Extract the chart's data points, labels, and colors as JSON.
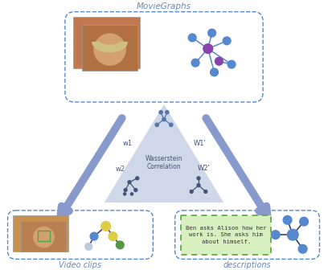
{
  "title": "MovieGraphs",
  "subtitle_left": "Video clips",
  "subtitle_right": "descriptions",
  "bg_color": "#ffffff",
  "triangle_color": "#a8b8d8",
  "arrow_color": "#8899cc",
  "node_blue": "#5588cc",
  "node_purple": "#8844aa",
  "node_yellow": "#ddcc44",
  "node_green": "#559944",
  "node_light": "#bbccdd",
  "text_color": "#6688bb",
  "waserstein_text": "Wasserstein\nCorrelation",
  "description_text": "Ben asks Alison how her\nwork is. She asks him\nabout himself.",
  "w1": "w1",
  "w2": "w2",
  "w1p": "W1'",
  "w2p": "W2'"
}
